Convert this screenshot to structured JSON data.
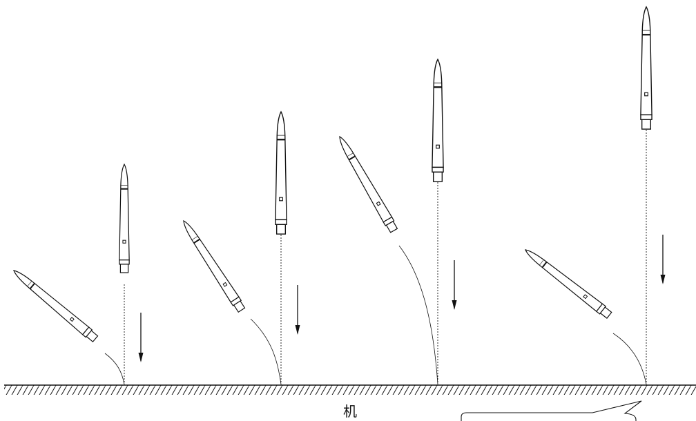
{
  "ground_label": "机",
  "callout_text": "",
  "colors": {
    "ink": "#111111",
    "background": "#ffffff"
  },
  "icons": [
    "stylus-icon",
    "falling-arrow-icon",
    "hatched-ground-icon",
    "speech-callout-icon"
  ],
  "groups": [
    {
      "name": "drop-1"
    },
    {
      "name": "drop-2"
    },
    {
      "name": "drop-3"
    },
    {
      "name": "drop-4"
    }
  ]
}
